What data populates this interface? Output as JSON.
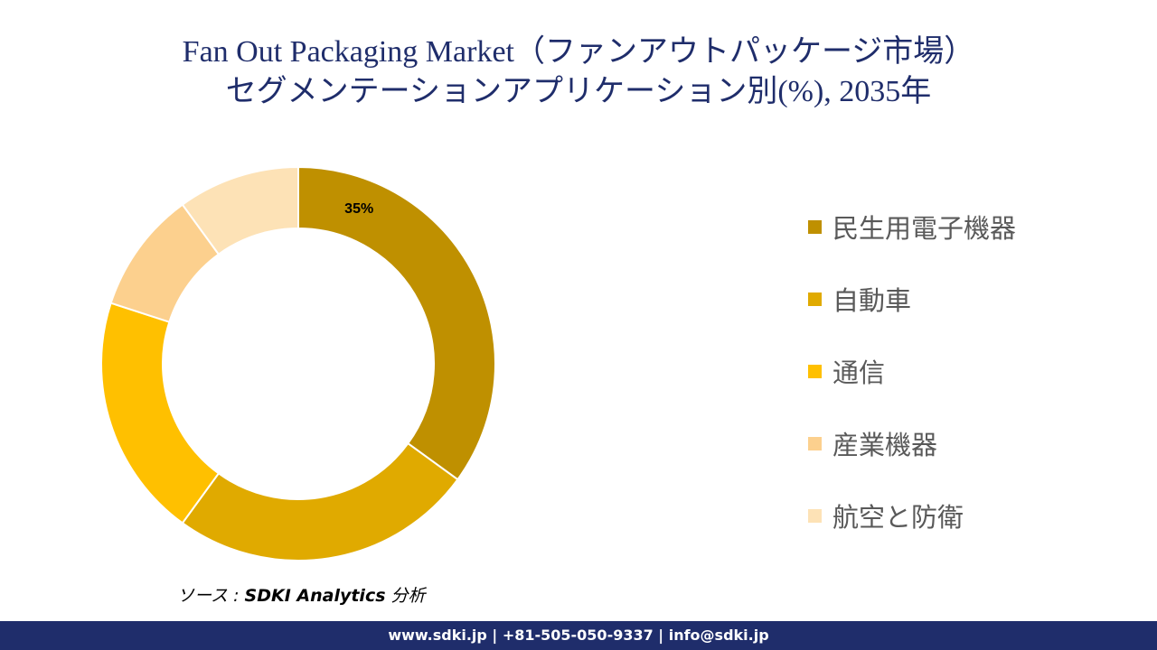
{
  "title": {
    "line1": "Fan Out Packaging Market（ファンアウトパッケージ市場）",
    "line2": "セグメンテーションアプリケーション別(%), 2035年"
  },
  "chart_data": {
    "type": "pie",
    "donut": true,
    "categories": [
      "民生用電子機器",
      "自動車",
      "通信",
      "産業機器",
      "航空と防衛"
    ],
    "values": [
      35,
      25,
      20,
      10,
      10
    ],
    "data_labels": [
      "35%",
      "",
      "",
      "",
      ""
    ],
    "colors": [
      "#bf9000",
      "#e0aa00",
      "#ffc000",
      "#fcd08e",
      "#fde2b6"
    ],
    "legend": "right"
  },
  "source": {
    "prefix": "ソース : ",
    "name": "SDKI Analytics",
    "suffix": " 分析"
  },
  "footer": {
    "text": "www.sdki.jp | +81-505-050-9337 | info@sdki.jp"
  }
}
